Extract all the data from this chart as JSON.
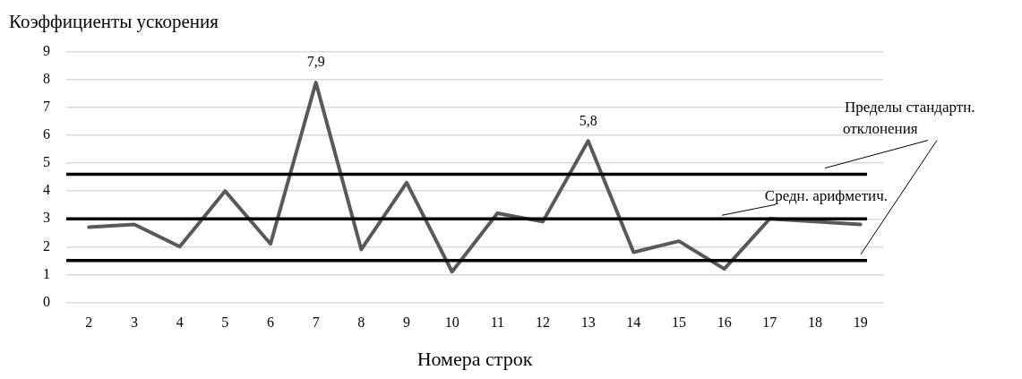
{
  "chart_data": {
    "type": "line",
    "ylabel": "Коэффициенты ускорения",
    "xlabel": "Номера строк",
    "categories": [
      "2",
      "3",
      "4",
      "5",
      "6",
      "7",
      "8",
      "9",
      "10",
      "11",
      "12",
      "13",
      "14",
      "15",
      "16",
      "17",
      "18",
      "19"
    ],
    "series": [
      {
        "color": "#595959",
        "values": [
          2.7,
          2.8,
          2.0,
          4.0,
          2.1,
          7.9,
          1.9,
          4.3,
          1.1,
          3.2,
          2.9,
          5.8,
          1.8,
          2.2,
          1.2,
          3.0,
          2.9,
          2.8
        ],
        "value_labels": [
          null,
          null,
          null,
          null,
          null,
          "7,9",
          null,
          null,
          null,
          null,
          null,
          "5,8",
          null,
          null,
          null,
          null,
          null,
          null
        ]
      }
    ],
    "ylim": [
      0,
      9
    ],
    "yticks": [
      0,
      1,
      2,
      3,
      4,
      5,
      6,
      7,
      8,
      9
    ],
    "grid": "y",
    "legend": false,
    "marker": "none",
    "line_style": "solid",
    "ref_lines": [
      {
        "axis": "y",
        "value": 4.6,
        "label": "Пределы стандартн. отклонения",
        "color": "#000000"
      },
      {
        "axis": "y",
        "value": 3.0,
        "label": "Средн. арифметич.",
        "color": "#000000"
      },
      {
        "axis": "y",
        "value": 1.5,
        "label": null,
        "color": "#000000"
      }
    ]
  }
}
